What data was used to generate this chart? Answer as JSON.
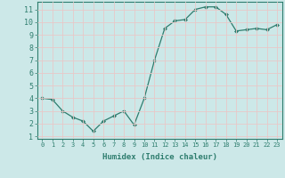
{
  "x": [
    0,
    1,
    2,
    3,
    4,
    5,
    6,
    7,
    8,
    9,
    10,
    11,
    12,
    13,
    14,
    15,
    16,
    17,
    18,
    19,
    20,
    21,
    22,
    23
  ],
  "y": [
    4.0,
    3.9,
    3.0,
    2.5,
    2.2,
    1.4,
    2.2,
    2.6,
    3.0,
    1.9,
    4.0,
    7.0,
    9.5,
    10.1,
    10.2,
    11.0,
    11.2,
    11.2,
    10.6,
    9.3,
    9.4,
    9.5,
    9.4,
    9.8
  ],
  "line_color": "#2e7d6e",
  "marker": "D",
  "marker_size": 2.0,
  "bg_color": "#cce8e8",
  "grid_color": "#e8c8c8",
  "xlabel": "Humidex (Indice chaleur)",
  "xlim": [
    -0.5,
    23.5
  ],
  "ylim": [
    0.8,
    11.6
  ],
  "yticks": [
    1,
    2,
    3,
    4,
    5,
    6,
    7,
    8,
    9,
    10,
    11
  ],
  "xticks": [
    0,
    1,
    2,
    3,
    4,
    5,
    6,
    7,
    8,
    9,
    10,
    11,
    12,
    13,
    14,
    15,
    16,
    17,
    18,
    19,
    20,
    21,
    22,
    23
  ],
  "tick_color": "#2e7d6e",
  "label_color": "#2e7d6e",
  "axis_color": "#2e7d6e",
  "xlabel_fontsize": 6.5,
  "tick_fontsize_x": 5.0,
  "tick_fontsize_y": 6.0
}
